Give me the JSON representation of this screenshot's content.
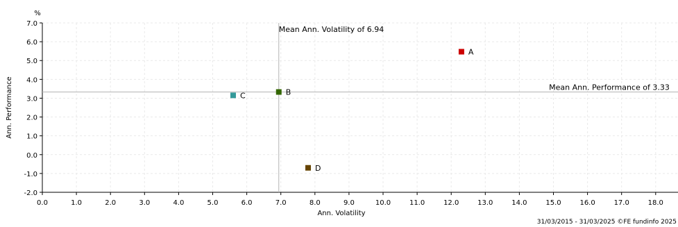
{
  "chart_data": {
    "type": "scatter",
    "xlabel": "Ann. Volatility",
    "ylabel": "Ann. Performance",
    "yunit": "%",
    "xlim": [
      0,
      18.5
    ],
    "ylim": [
      -2,
      7
    ],
    "xticks": [
      "0.0",
      "1.0",
      "2.0",
      "3.0",
      "4.0",
      "5.0",
      "6.0",
      "7.0",
      "8.0",
      "9.0",
      "10.0",
      "11.0",
      "12.0",
      "13.0",
      "14.0",
      "15.0",
      "16.0",
      "17.0",
      "18.0"
    ],
    "yticks": [
      "-2.0",
      "-1.0",
      "0.0",
      "1.0",
      "2.0",
      "3.0",
      "4.0",
      "5.0",
      "6.0",
      "7.0"
    ],
    "grid": true,
    "points": [
      {
        "name": "A",
        "x": 12.3,
        "y": 5.47,
        "color": "#cc0000"
      },
      {
        "name": "B",
        "x": 6.94,
        "y": 3.33,
        "color": "#336600"
      },
      {
        "name": "C",
        "x": 5.6,
        "y": 3.15,
        "color": "#339999"
      },
      {
        "name": "D",
        "x": 7.8,
        "y": -0.7,
        "color": "#664400"
      }
    ],
    "mean_volatility": 6.94,
    "mean_volatility_label": "Mean Ann. Volatility of 6.94",
    "mean_performance": 3.33,
    "mean_performance_label": "Mean Ann. Performance of 3.33",
    "footer": "31/03/2015 - 31/03/2025 ©FE fundinfo 2025"
  }
}
